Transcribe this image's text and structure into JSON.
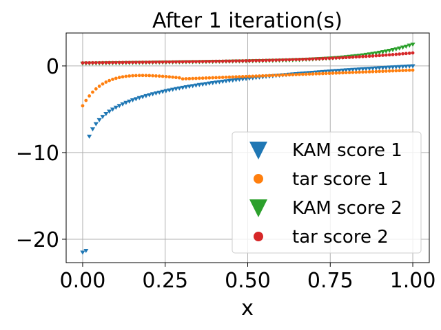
{
  "chart_data": {
    "type": "scatter",
    "title": "After 1 iteration(s)",
    "xlabel": "x",
    "ylabel": "",
    "xlim": [
      -0.05,
      1.05
    ],
    "ylim": [
      -22.7,
      3.8
    ],
    "grid": true,
    "legend_position": "lower-right",
    "x_ticks": [
      0.0,
      0.25,
      0.5,
      0.75,
      1.0
    ],
    "x_tick_labels": [
      "0.00",
      "0.25",
      "0.50",
      "0.75",
      "1.00"
    ],
    "y_ticks": [
      -20,
      -10,
      0
    ],
    "y_tick_labels": [
      "−20",
      "−10",
      "0"
    ],
    "x_sampling": {
      "start": 0.0,
      "stop": 1.0,
      "count": 100
    },
    "series": [
      {
        "name": "KAM score 1",
        "marker": "triangle-down",
        "color": "#1f77b4",
        "model": {
          "kind": "log",
          "a": 4.8,
          "b": 0.00013,
          "x_min": 0.0067
        },
        "anomalies": [
          {
            "x": 0.0,
            "y": -21.5
          },
          {
            "x": 0.0101,
            "y": -21.3
          }
        ]
      },
      {
        "name": "tar score 1",
        "marker": "circle",
        "color": "#ff7f0e",
        "model": {
          "kind": "tar1"
        }
      },
      {
        "name": "KAM score 2",
        "marker": "triangle-down",
        "color": "#2ca02c",
        "model": {
          "kind": "kam2"
        }
      },
      {
        "name": "tar score 2",
        "marker": "circle",
        "color": "#d62728",
        "model": {
          "kind": "tar2"
        }
      }
    ]
  }
}
